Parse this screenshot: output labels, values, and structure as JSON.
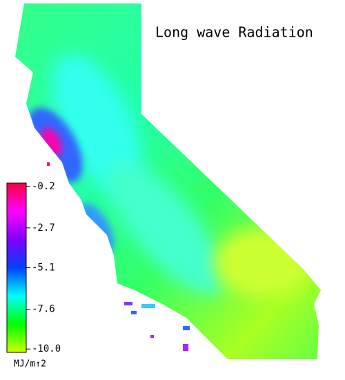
{
  "title": "Long wave Radiation",
  "colorbar": {
    "label": "MJ/m↑2",
    "lim": [
      -10.2,
      0
    ],
    "ticks": [
      -0.2,
      -2.7,
      -5.1,
      -7.6,
      {
        "value": -10,
        "label": "-10.0"
      }
    ],
    "colors": [
      "#ccff00",
      "#00ff00",
      "#00ffff",
      "#0040ff",
      "#8000ff",
      "#ff00ff",
      "#ff0040"
    ]
  }
}
